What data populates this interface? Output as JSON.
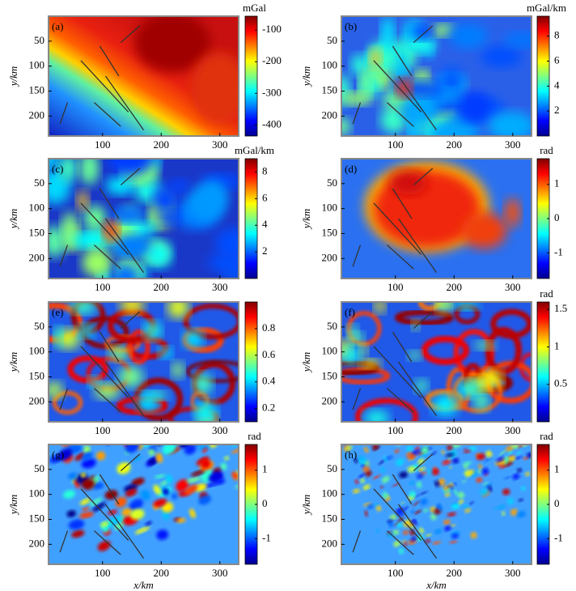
{
  "chart_data": {
    "type": "heatmap",
    "x_label": "x/km",
    "y_label": "y/km",
    "xlim": [
      8,
      332
    ],
    "xticks": [
      100,
      200,
      300
    ],
    "ylim": [
      0,
      240
    ],
    "y_inverted": true,
    "yticks": [
      50,
      100,
      150,
      200
    ],
    "colormap": "jet",
    "panels": [
      {
        "label": "(a)",
        "unit": "mGal",
        "clim": [
          -435,
          -56
        ],
        "cticks": [
          -100,
          -200,
          -300,
          -400
        ]
      },
      {
        "label": "(b)",
        "unit": "mGal/km",
        "clim": [
          0,
          9.6
        ],
        "cticks": [
          8,
          6,
          4,
          2
        ]
      },
      {
        "label": "(c)",
        "unit": "mGal/km",
        "clim": [
          0,
          9
        ],
        "cticks": [
          8,
          6,
          4,
          2
        ]
      },
      {
        "label": "(d)",
        "unit": "rad",
        "clim": [
          -1.75,
          1.75
        ],
        "cticks": [
          1,
          0,
          -1
        ]
      },
      {
        "label": "(e)",
        "unit": "",
        "clim": [
          0.1,
          1.0
        ],
        "cticks": [
          0.8,
          0.6,
          0.4,
          0.2
        ]
      },
      {
        "label": "(f)",
        "unit": "rad",
        "clim": [
          0,
          1.6
        ],
        "cticks": [
          1.5,
          1,
          0.5
        ]
      },
      {
        "label": "(g)",
        "unit": "rad",
        "clim": [
          -1.75,
          1.75
        ],
        "cticks": [
          1,
          0,
          -1
        ]
      },
      {
        "label": "(h)",
        "unit": "rad",
        "clim": [
          -1.75,
          1.75
        ],
        "cticks": [
          1,
          0,
          -1
        ]
      }
    ]
  }
}
